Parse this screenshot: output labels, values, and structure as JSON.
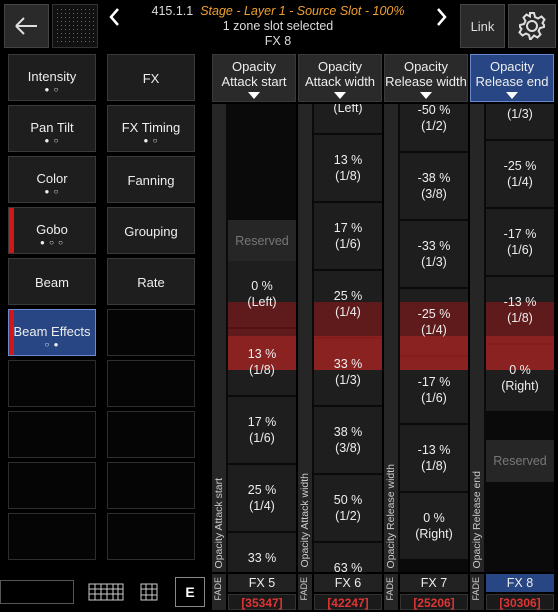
{
  "header": {
    "address": "415.1.1",
    "path": "Stage - Layer 1 - Source Slot - 100%",
    "status": "1 zone slot selected",
    "fx": "FX 8",
    "link": "Link"
  },
  "buttons": {
    "left": [
      {
        "label": "Intensity",
        "dots": "● ○"
      },
      {
        "label": "Pan Tilt",
        "dots": "● ○"
      },
      {
        "label": "Color",
        "dots": "● ○"
      },
      {
        "label": "Gobo",
        "dots": "● ○ ○",
        "marked": true
      },
      {
        "label": "Beam"
      },
      {
        "label": "Beam Effects",
        "dots": "○ ●",
        "marked": true,
        "selected": true
      }
    ],
    "right": [
      {
        "label": "FX"
      },
      {
        "label": "FX Timing",
        "dots": "● ○"
      },
      {
        "label": "Fanning"
      },
      {
        "label": "Grouping"
      },
      {
        "label": "Rate"
      }
    ]
  },
  "columns": [
    {
      "title": "Opacity",
      "subtitle": "Attack start",
      "side_label": "Opacity Attack start",
      "fade": "FADE",
      "name": "FX 5",
      "id": "[35347]",
      "cells": [
        [
          "Reserved"
        ],
        [
          "0 %",
          "(Left)"
        ],
        [
          "13 %",
          "(1/8)"
        ],
        [
          "17 %",
          "(1/6)"
        ],
        [
          "25 %",
          "(1/4)"
        ],
        [
          "33 %"
        ]
      ]
    },
    {
      "title": "Opacity",
      "subtitle": "Attack width",
      "side_label": "Opacity Attack width",
      "fade": "FADE",
      "name": "FX 6",
      "id": "[42247]",
      "cells": [
        [
          "(Left)"
        ],
        [
          "13 %",
          "(1/8)"
        ],
        [
          "17 %",
          "(1/6)"
        ],
        [
          "25 %",
          "(1/4)"
        ],
        [
          "33 %",
          "(1/3)"
        ],
        [
          "38 %",
          "(3/8)"
        ],
        [
          "50 %",
          "(1/2)"
        ],
        [
          "63 %"
        ]
      ]
    },
    {
      "title": "Opacity",
      "subtitle": "Release width",
      "side_label": "Opacity Release width",
      "fade": "FADE",
      "name": "FX 7",
      "id": "[25206]",
      "cells": [
        [
          "-50 %",
          "(1/2)"
        ],
        [
          "-38 %",
          "(3/8)"
        ],
        [
          "-33 %",
          "(1/3)"
        ],
        [
          "-25 %",
          "(1/4)"
        ],
        [
          "-17 %",
          "(1/6)"
        ],
        [
          "-13 %",
          "(1/8)"
        ],
        [
          "0 %",
          "(Right)"
        ]
      ]
    },
    {
      "title": "Opacity",
      "subtitle": "Release end",
      "side_label": "Opacity Release end",
      "fade": "FADE",
      "name": "FX 8",
      "id": "[30306]",
      "selected": true,
      "cells": [
        [
          "(1/3)"
        ],
        [
          "-25 %",
          "(1/4)"
        ],
        [
          "-17 %",
          "(1/6)"
        ],
        [
          "-13 %",
          "(1/8)"
        ],
        [
          "0 %",
          "(Right)"
        ],
        [
          "Reserved"
        ]
      ]
    }
  ],
  "toolbar": {
    "e_key": "E"
  }
}
